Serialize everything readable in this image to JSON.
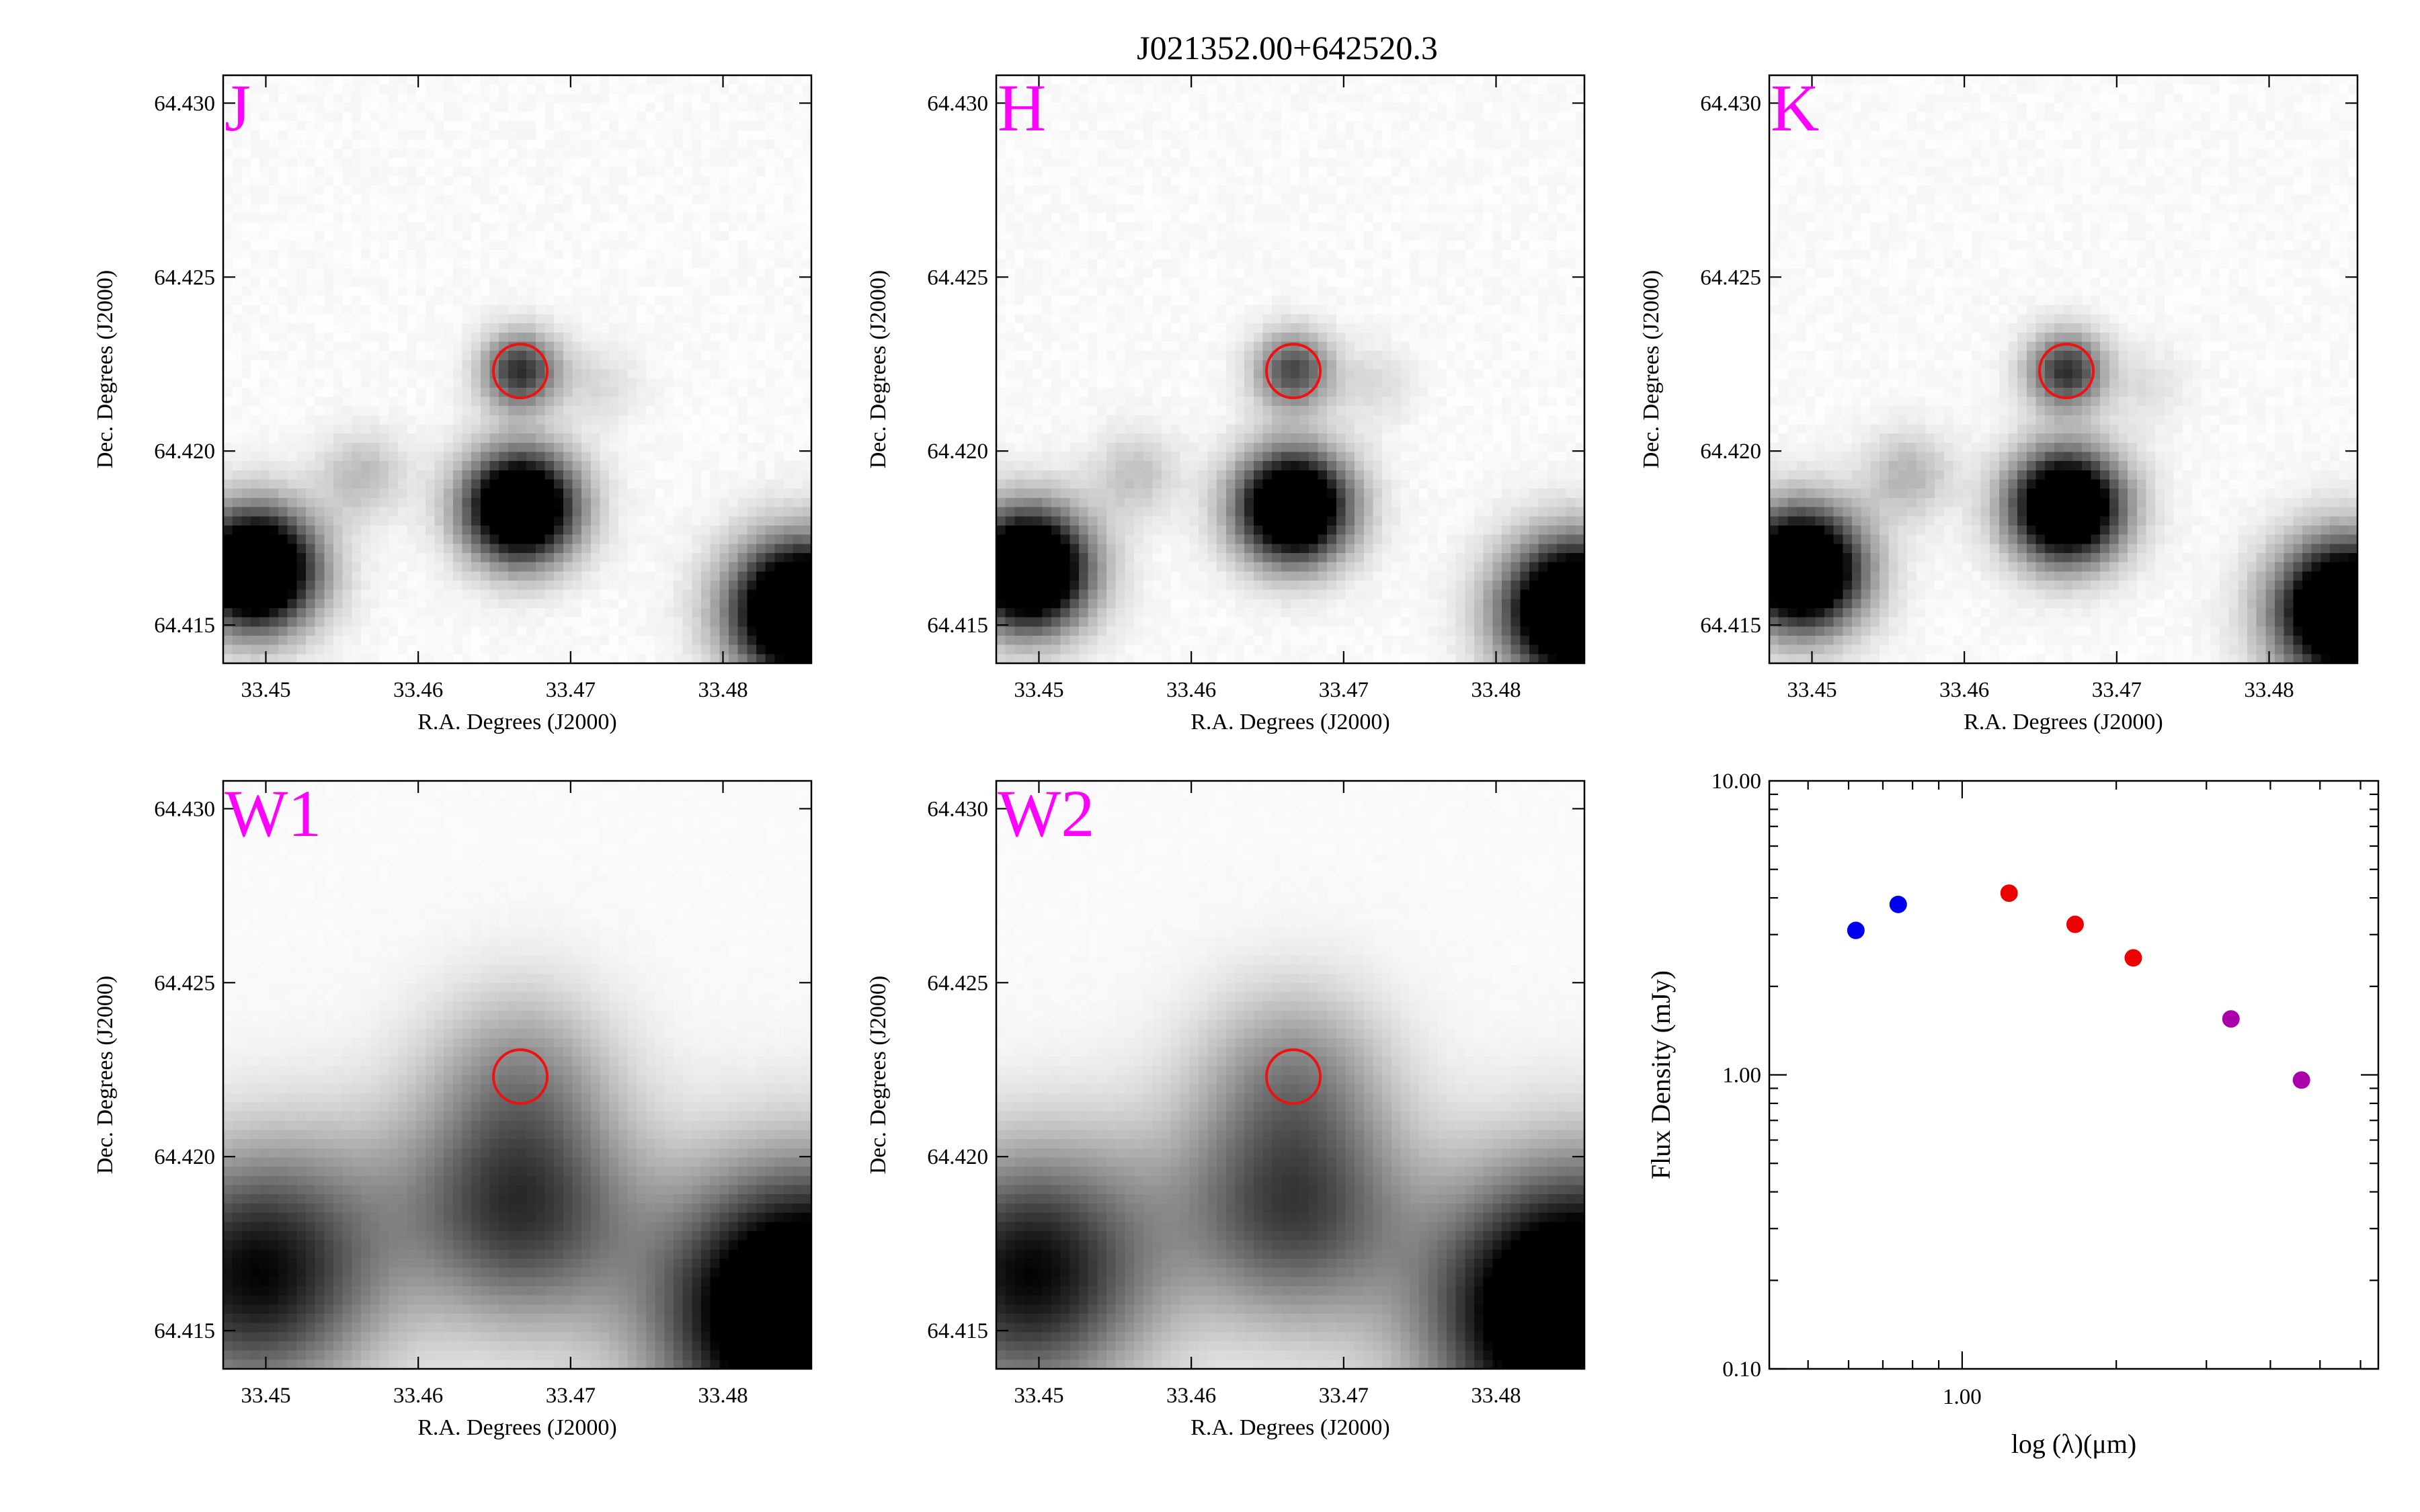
{
  "title": "J021352.00+642520.3",
  "image_panels": [
    {
      "band": "J",
      "xlabel": "R.A. Degrees (J2000)",
      "ylabel": "Dec. Degrees (J2000)",
      "xticks": [
        "33.45",
        "33.46",
        "33.47",
        "33.48"
      ],
      "yticks": [
        "64.430",
        "64.425",
        "64.420",
        "64.415"
      ],
      "sources": [
        {
          "ra": 33.4667,
          "dec": 64.4223,
          "fwhm": 0.0009,
          "level": 0.8
        },
        {
          "ra": 33.472,
          "dec": 64.4219,
          "fwhm": 0.0009,
          "level": 0.12
        },
        {
          "ra": 33.4563,
          "dec": 64.4193,
          "fwhm": 0.001,
          "level": 0.25
        },
        {
          "ra": 33.4667,
          "dec": 64.4184,
          "fwhm": 0.0013,
          "level": 1.6
        },
        {
          "ra": 33.4493,
          "dec": 64.4166,
          "fwhm": 0.0014,
          "level": 1.7
        },
        {
          "ra": 33.4852,
          "dec": 64.4154,
          "fwhm": 0.0016,
          "level": 1.8
        }
      ],
      "target": {
        "ra": 33.4667,
        "dec": 64.4223
      }
    },
    {
      "band": "H",
      "xlabel": "R.A. Degrees (J2000)",
      "ylabel": "Dec. Degrees (J2000)",
      "xticks": [
        "33.45",
        "33.46",
        "33.47",
        "33.48"
      ],
      "yticks": [
        "64.430",
        "64.425",
        "64.420",
        "64.415"
      ],
      "sources": [
        {
          "ra": 33.4667,
          "dec": 64.4223,
          "fwhm": 0.0009,
          "level": 0.7
        },
        {
          "ra": 33.472,
          "dec": 64.4219,
          "fwhm": 0.0009,
          "level": 0.12
        },
        {
          "ra": 33.4563,
          "dec": 64.4193,
          "fwhm": 0.001,
          "level": 0.22
        },
        {
          "ra": 33.4667,
          "dec": 64.4184,
          "fwhm": 0.0013,
          "level": 1.6
        },
        {
          "ra": 33.4493,
          "dec": 64.4166,
          "fwhm": 0.0014,
          "level": 1.7
        },
        {
          "ra": 33.4852,
          "dec": 64.4154,
          "fwhm": 0.0016,
          "level": 1.8
        }
      ],
      "target": {
        "ra": 33.4667,
        "dec": 64.4223
      }
    },
    {
      "band": "K",
      "xlabel": "R.A. Degrees (J2000)",
      "ylabel": "Dec. Degrees (J2000)",
      "xticks": [
        "33.45",
        "33.46",
        "33.47",
        "33.48"
      ],
      "yticks": [
        "64.430",
        "64.425",
        "64.420",
        "64.415"
      ],
      "sources": [
        {
          "ra": 33.4667,
          "dec": 64.4223,
          "fwhm": 0.0009,
          "level": 0.8
        },
        {
          "ra": 33.472,
          "dec": 64.4219,
          "fwhm": 0.0009,
          "level": 0.1
        },
        {
          "ra": 33.4563,
          "dec": 64.4193,
          "fwhm": 0.001,
          "level": 0.28
        },
        {
          "ra": 33.4667,
          "dec": 64.4184,
          "fwhm": 0.0013,
          "level": 1.6
        },
        {
          "ra": 33.4493,
          "dec": 64.4166,
          "fwhm": 0.0014,
          "level": 1.7
        },
        {
          "ra": 33.4852,
          "dec": 64.4154,
          "fwhm": 0.0016,
          "level": 1.8
        }
      ],
      "target": {
        "ra": 33.4667,
        "dec": 64.4223
      }
    },
    {
      "band": "W1",
      "xlabel": "R.A. Degrees (J2000)",
      "ylabel": "Dec. Degrees (J2000)",
      "xticks": [
        "33.45",
        "33.46",
        "33.47",
        "33.48"
      ],
      "yticks": [
        "64.430",
        "64.425",
        "64.420",
        "64.415"
      ],
      "sources": [
        {
          "ra": 33.4667,
          "dec": 64.4223,
          "fwhm": 0.0022,
          "level": 0.35
        },
        {
          "ra": 33.4563,
          "dec": 64.4193,
          "fwhm": 0.0024,
          "level": 0.1
        },
        {
          "ra": 33.4667,
          "dec": 64.4184,
          "fwhm": 0.0026,
          "level": 0.75
        },
        {
          "ra": 33.4493,
          "dec": 64.4166,
          "fwhm": 0.0028,
          "level": 0.95
        },
        {
          "ra": 33.4855,
          "dec": 64.4155,
          "fwhm": 0.0032,
          "level": 1.6
        }
      ],
      "target": {
        "ra": 33.4667,
        "dec": 64.4223
      }
    },
    {
      "band": "W2",
      "xlabel": "R.A. Degrees (J2000)",
      "ylabel": "Dec. Degrees (J2000)",
      "xticks": [
        "33.45",
        "33.46",
        "33.47",
        "33.48"
      ],
      "yticks": [
        "64.430",
        "64.425",
        "64.420",
        "64.415"
      ],
      "sources": [
        {
          "ra": 33.4667,
          "dec": 64.4223,
          "fwhm": 0.0022,
          "level": 0.38
        },
        {
          "ra": 33.4563,
          "dec": 64.4193,
          "fwhm": 0.0024,
          "level": 0.08
        },
        {
          "ra": 33.4667,
          "dec": 64.4184,
          "fwhm": 0.0026,
          "level": 0.7
        },
        {
          "ra": 33.4493,
          "dec": 64.4166,
          "fwhm": 0.0028,
          "level": 0.95
        },
        {
          "ra": 33.4855,
          "dec": 64.4155,
          "fwhm": 0.0032,
          "level": 1.6
        }
      ],
      "target": {
        "ra": 33.4667,
        "dec": 64.4223
      }
    }
  ],
  "image_extent": {
    "ra": [
      33.4472,
      33.4858
    ],
    "dec": [
      64.4139,
      64.4308
    ]
  },
  "chart_data": {
    "type": "scatter",
    "title": "",
    "xlabel": "log (λ)(μm)",
    "ylabel": "Flux Density (mJy)",
    "xscale": "log",
    "yscale": "log",
    "xlim": [
      0.42,
      6.5
    ],
    "ylim": [
      0.1,
      10.0
    ],
    "xticks": [
      "1.00"
    ],
    "yticks": [
      "10.00",
      "1.00",
      "0.10"
    ],
    "series": [
      {
        "color": "#0000ee",
        "x": [
          0.62,
          0.75
        ],
        "y": [
          3.1,
          3.8
        ]
      },
      {
        "color": "#ee0000",
        "x": [
          1.235,
          1.662,
          2.159
        ],
        "y": [
          4.15,
          3.25,
          2.5
        ]
      },
      {
        "color": "#aa00aa",
        "x": [
          3.35,
          4.6
        ],
        "y": [
          1.55,
          0.96
        ]
      }
    ]
  }
}
